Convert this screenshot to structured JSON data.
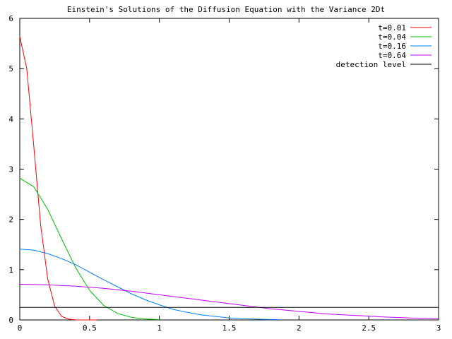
{
  "chart_data": {
    "type": "line",
    "title": "Einstein's Solutions of the Diffusion Equation with the Variance 2Dt",
    "xlabel": "",
    "ylabel": "",
    "xlim": [
      0,
      3
    ],
    "ylim": [
      0,
      6
    ],
    "x_ticks": [
      0,
      0.5,
      1,
      1.5,
      2,
      2.5,
      3
    ],
    "x_tick_labels": [
      "0",
      "0.5",
      "1",
      "1.5",
      "2",
      "2.5",
      "3"
    ],
    "y_ticks": [
      0,
      1,
      2,
      3,
      4,
      5,
      6
    ],
    "y_tick_labels": [
      "0",
      "1",
      "2",
      "3",
      "4",
      "5",
      "6"
    ],
    "grid": false,
    "legend_position": "top-right",
    "series": [
      {
        "name": "t=0.01",
        "color": "#ff0000",
        "x": [
          0,
          0.05,
          0.1,
          0.15,
          0.2,
          0.25,
          0.3,
          0.35,
          0.4,
          0.45,
          0.5,
          0.55
        ],
        "y": [
          5.64,
          5.0,
          3.46,
          1.88,
          0.82,
          0.27,
          0.07,
          0.015,
          0.002,
          0.0002,
          0.0,
          0.0
        ]
      },
      {
        "name": "t=0.04",
        "color": "#00c000",
        "x": [
          0,
          0.1,
          0.2,
          0.3,
          0.4,
          0.5,
          0.6,
          0.7,
          0.8,
          0.9,
          1.0
        ],
        "y": [
          2.82,
          2.65,
          2.2,
          1.61,
          1.04,
          0.59,
          0.29,
          0.13,
          0.05,
          0.02,
          0.005
        ]
      },
      {
        "name": "t=0.16",
        "color": "#0080ff",
        "x": [
          0,
          0.1,
          0.2,
          0.3,
          0.4,
          0.5,
          0.6,
          0.7,
          0.8,
          0.9,
          1.0,
          1.1,
          1.2,
          1.3,
          1.4,
          1.5,
          1.6,
          1.7,
          1.8,
          1.85
        ],
        "y": [
          1.41,
          1.39,
          1.32,
          1.22,
          1.1,
          0.95,
          0.8,
          0.66,
          0.52,
          0.4,
          0.3,
          0.21,
          0.15,
          0.1,
          0.07,
          0.04,
          0.025,
          0.015,
          0.009,
          0.007
        ]
      },
      {
        "name": "t=0.64",
        "color": "#c000ff",
        "x": [
          0,
          0.2,
          0.4,
          0.6,
          0.8,
          1.0,
          1.2,
          1.4,
          1.6,
          1.8,
          2.0,
          2.2,
          2.4,
          2.6,
          2.8,
          3.0
        ],
        "y": [
          0.71,
          0.7,
          0.67,
          0.63,
          0.57,
          0.5,
          0.43,
          0.36,
          0.29,
          0.22,
          0.17,
          0.12,
          0.09,
          0.06,
          0.04,
          0.03
        ]
      },
      {
        "name": "detection level",
        "color": "#000000",
        "x": [
          0,
          3
        ],
        "y": [
          0.25,
          0.25
        ]
      }
    ]
  }
}
